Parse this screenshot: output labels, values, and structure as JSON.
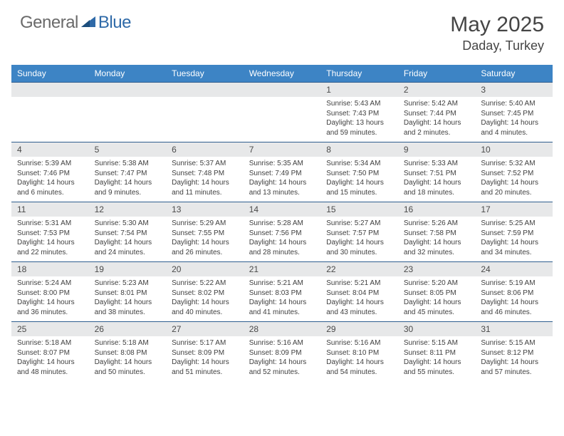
{
  "logo": {
    "textA": "General",
    "textB": "Blue",
    "colorA": "#6a6a6a",
    "colorB": "#2f6aa8"
  },
  "title": {
    "month": "May 2025",
    "location": "Daday, Turkey"
  },
  "colors": {
    "header_bg": "#3d84c5",
    "header_text": "#ffffff",
    "numrow_bg": "#e7e8e9",
    "numrow_border": "#2f5e8f",
    "body_text": "#3f3f3f"
  },
  "dayNames": [
    "Sunday",
    "Monday",
    "Tuesday",
    "Wednesday",
    "Thursday",
    "Friday",
    "Saturday"
  ],
  "weeks": [
    [
      {
        "n": "",
        "lines": [
          "",
          "",
          "",
          ""
        ]
      },
      {
        "n": "",
        "lines": [
          "",
          "",
          "",
          ""
        ]
      },
      {
        "n": "",
        "lines": [
          "",
          "",
          "",
          ""
        ]
      },
      {
        "n": "",
        "lines": [
          "",
          "",
          "",
          ""
        ]
      },
      {
        "n": "1",
        "lines": [
          "Sunrise: 5:43 AM",
          "Sunset: 7:43 PM",
          "Daylight: 13 hours",
          "and 59 minutes."
        ]
      },
      {
        "n": "2",
        "lines": [
          "Sunrise: 5:42 AM",
          "Sunset: 7:44 PM",
          "Daylight: 14 hours",
          "and 2 minutes."
        ]
      },
      {
        "n": "3",
        "lines": [
          "Sunrise: 5:40 AM",
          "Sunset: 7:45 PM",
          "Daylight: 14 hours",
          "and 4 minutes."
        ]
      }
    ],
    [
      {
        "n": "4",
        "lines": [
          "Sunrise: 5:39 AM",
          "Sunset: 7:46 PM",
          "Daylight: 14 hours",
          "and 6 minutes."
        ]
      },
      {
        "n": "5",
        "lines": [
          "Sunrise: 5:38 AM",
          "Sunset: 7:47 PM",
          "Daylight: 14 hours",
          "and 9 minutes."
        ]
      },
      {
        "n": "6",
        "lines": [
          "Sunrise: 5:37 AM",
          "Sunset: 7:48 PM",
          "Daylight: 14 hours",
          "and 11 minutes."
        ]
      },
      {
        "n": "7",
        "lines": [
          "Sunrise: 5:35 AM",
          "Sunset: 7:49 PM",
          "Daylight: 14 hours",
          "and 13 minutes."
        ]
      },
      {
        "n": "8",
        "lines": [
          "Sunrise: 5:34 AM",
          "Sunset: 7:50 PM",
          "Daylight: 14 hours",
          "and 15 minutes."
        ]
      },
      {
        "n": "9",
        "lines": [
          "Sunrise: 5:33 AM",
          "Sunset: 7:51 PM",
          "Daylight: 14 hours",
          "and 18 minutes."
        ]
      },
      {
        "n": "10",
        "lines": [
          "Sunrise: 5:32 AM",
          "Sunset: 7:52 PM",
          "Daylight: 14 hours",
          "and 20 minutes."
        ]
      }
    ],
    [
      {
        "n": "11",
        "lines": [
          "Sunrise: 5:31 AM",
          "Sunset: 7:53 PM",
          "Daylight: 14 hours",
          "and 22 minutes."
        ]
      },
      {
        "n": "12",
        "lines": [
          "Sunrise: 5:30 AM",
          "Sunset: 7:54 PM",
          "Daylight: 14 hours",
          "and 24 minutes."
        ]
      },
      {
        "n": "13",
        "lines": [
          "Sunrise: 5:29 AM",
          "Sunset: 7:55 PM",
          "Daylight: 14 hours",
          "and 26 minutes."
        ]
      },
      {
        "n": "14",
        "lines": [
          "Sunrise: 5:28 AM",
          "Sunset: 7:56 PM",
          "Daylight: 14 hours",
          "and 28 minutes."
        ]
      },
      {
        "n": "15",
        "lines": [
          "Sunrise: 5:27 AM",
          "Sunset: 7:57 PM",
          "Daylight: 14 hours",
          "and 30 minutes."
        ]
      },
      {
        "n": "16",
        "lines": [
          "Sunrise: 5:26 AM",
          "Sunset: 7:58 PM",
          "Daylight: 14 hours",
          "and 32 minutes."
        ]
      },
      {
        "n": "17",
        "lines": [
          "Sunrise: 5:25 AM",
          "Sunset: 7:59 PM",
          "Daylight: 14 hours",
          "and 34 minutes."
        ]
      }
    ],
    [
      {
        "n": "18",
        "lines": [
          "Sunrise: 5:24 AM",
          "Sunset: 8:00 PM",
          "Daylight: 14 hours",
          "and 36 minutes."
        ]
      },
      {
        "n": "19",
        "lines": [
          "Sunrise: 5:23 AM",
          "Sunset: 8:01 PM",
          "Daylight: 14 hours",
          "and 38 minutes."
        ]
      },
      {
        "n": "20",
        "lines": [
          "Sunrise: 5:22 AM",
          "Sunset: 8:02 PM",
          "Daylight: 14 hours",
          "and 40 minutes."
        ]
      },
      {
        "n": "21",
        "lines": [
          "Sunrise: 5:21 AM",
          "Sunset: 8:03 PM",
          "Daylight: 14 hours",
          "and 41 minutes."
        ]
      },
      {
        "n": "22",
        "lines": [
          "Sunrise: 5:21 AM",
          "Sunset: 8:04 PM",
          "Daylight: 14 hours",
          "and 43 minutes."
        ]
      },
      {
        "n": "23",
        "lines": [
          "Sunrise: 5:20 AM",
          "Sunset: 8:05 PM",
          "Daylight: 14 hours",
          "and 45 minutes."
        ]
      },
      {
        "n": "24",
        "lines": [
          "Sunrise: 5:19 AM",
          "Sunset: 8:06 PM",
          "Daylight: 14 hours",
          "and 46 minutes."
        ]
      }
    ],
    [
      {
        "n": "25",
        "lines": [
          "Sunrise: 5:18 AM",
          "Sunset: 8:07 PM",
          "Daylight: 14 hours",
          "and 48 minutes."
        ]
      },
      {
        "n": "26",
        "lines": [
          "Sunrise: 5:18 AM",
          "Sunset: 8:08 PM",
          "Daylight: 14 hours",
          "and 50 minutes."
        ]
      },
      {
        "n": "27",
        "lines": [
          "Sunrise: 5:17 AM",
          "Sunset: 8:09 PM",
          "Daylight: 14 hours",
          "and 51 minutes."
        ]
      },
      {
        "n": "28",
        "lines": [
          "Sunrise: 5:16 AM",
          "Sunset: 8:09 PM",
          "Daylight: 14 hours",
          "and 52 minutes."
        ]
      },
      {
        "n": "29",
        "lines": [
          "Sunrise: 5:16 AM",
          "Sunset: 8:10 PM",
          "Daylight: 14 hours",
          "and 54 minutes."
        ]
      },
      {
        "n": "30",
        "lines": [
          "Sunrise: 5:15 AM",
          "Sunset: 8:11 PM",
          "Daylight: 14 hours",
          "and 55 minutes."
        ]
      },
      {
        "n": "31",
        "lines": [
          "Sunrise: 5:15 AM",
          "Sunset: 8:12 PM",
          "Daylight: 14 hours",
          "and 57 minutes."
        ]
      }
    ]
  ]
}
